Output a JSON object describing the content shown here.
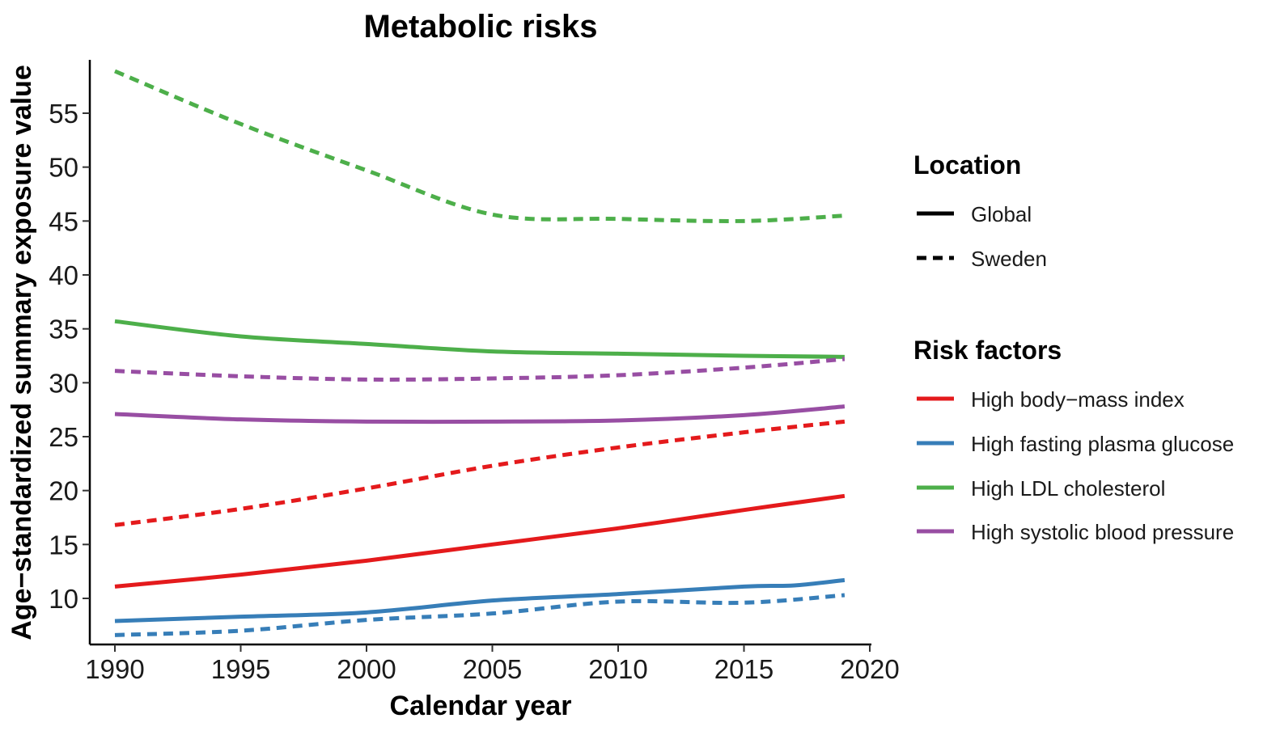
{
  "chart_data": {
    "type": "line",
    "title": "Metabolic risks",
    "xlabel": "Calendar year",
    "ylabel": "Age−standardized summary exposure value",
    "xlim": [
      1989,
      2020
    ],
    "ylim": [
      5,
      59.5
    ],
    "x_ticks": [
      1990,
      1995,
      2000,
      2005,
      2010,
      2015,
      2020
    ],
    "y_ticks": [
      10,
      15,
      20,
      25,
      30,
      35,
      40,
      45,
      50,
      55
    ],
    "grid": false,
    "legend_position": "right",
    "legends": [
      {
        "title": "Location",
        "items": [
          {
            "label": "Global",
            "linestyle": "solid"
          },
          {
            "label": "Sweden",
            "linestyle": "dashed"
          }
        ]
      },
      {
        "title": "Risk factors",
        "items": [
          {
            "label": "High body−mass index",
            "color": "#e41a1c"
          },
          {
            "label": "High fasting plasma glucose",
            "color": "#377eb8"
          },
          {
            "label": "High LDL cholesterol",
            "color": "#4daf4a"
          },
          {
            "label": "High systolic blood pressure",
            "color": "#984ea3"
          }
        ]
      }
    ],
    "series": [
      {
        "risk": "High body−mass index",
        "location": "Global",
        "color": "#e41a1c",
        "linestyle": "solid",
        "x": [
          1990,
          1995,
          2000,
          2005,
          2010,
          2015,
          2019
        ],
        "y": [
          11.1,
          12.2,
          13.5,
          15.0,
          16.5,
          18.2,
          19.5
        ]
      },
      {
        "risk": "High body−mass index",
        "location": "Sweden",
        "color": "#e41a1c",
        "linestyle": "dashed",
        "x": [
          1990,
          1995,
          2000,
          2005,
          2010,
          2015,
          2019
        ],
        "y": [
          16.8,
          18.3,
          20.2,
          22.3,
          24.0,
          25.4,
          26.4
        ]
      },
      {
        "risk": "High fasting plasma glucose",
        "location": "Global",
        "color": "#377eb8",
        "linestyle": "solid",
        "x": [
          1990,
          1995,
          2000,
          2005,
          2010,
          2015,
          2017,
          2019
        ],
        "y": [
          7.9,
          8.3,
          8.7,
          9.8,
          10.4,
          11.1,
          11.2,
          11.7
        ]
      },
      {
        "risk": "High fasting plasma glucose",
        "location": "Sweden",
        "color": "#377eb8",
        "linestyle": "dashed",
        "x": [
          1990,
          1995,
          2000,
          2005,
          2010,
          2015,
          2019
        ],
        "y": [
          6.6,
          7.0,
          8.0,
          8.6,
          9.7,
          9.6,
          10.3
        ]
      },
      {
        "risk": "High LDL cholesterol",
        "location": "Global",
        "color": "#4daf4a",
        "linestyle": "solid",
        "x": [
          1990,
          1995,
          2000,
          2005,
          2010,
          2015,
          2019
        ],
        "y": [
          35.7,
          34.3,
          33.6,
          32.9,
          32.7,
          32.5,
          32.4
        ]
      },
      {
        "risk": "High LDL cholesterol",
        "location": "Sweden",
        "color": "#4daf4a",
        "linestyle": "dashed",
        "x": [
          1990,
          1995,
          2000,
          2005,
          2010,
          2015,
          2019
        ],
        "y": [
          58.9,
          54.0,
          49.7,
          45.6,
          45.2,
          45.0,
          45.5
        ]
      },
      {
        "risk": "High systolic blood pressure",
        "location": "Global",
        "color": "#984ea3",
        "linestyle": "solid",
        "x": [
          1990,
          1995,
          2000,
          2005,
          2010,
          2015,
          2019
        ],
        "y": [
          27.1,
          26.6,
          26.4,
          26.4,
          26.5,
          27.0,
          27.8
        ]
      },
      {
        "risk": "High systolic blood pressure",
        "location": "Sweden",
        "color": "#984ea3",
        "linestyle": "dashed",
        "x": [
          1990,
          1995,
          2000,
          2005,
          2010,
          2015,
          2019
        ],
        "y": [
          31.1,
          30.6,
          30.3,
          30.4,
          30.7,
          31.4,
          32.2
        ]
      }
    ]
  }
}
